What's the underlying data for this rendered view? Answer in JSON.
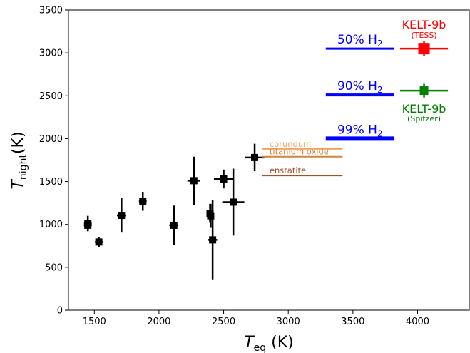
{
  "chart_data": {
    "type": "scatter",
    "title": "",
    "xlabel": {
      "main": "T",
      "sub": "eq",
      "unit": " (K)"
    },
    "ylabel": {
      "main": "T",
      "sub": "night",
      "unit": "(K)"
    },
    "xlim": [
      1300,
      4400
    ],
    "ylim": [
      0,
      3500
    ],
    "x_ticks": [
      1500,
      2000,
      2500,
      3000,
      3500,
      4000
    ],
    "y_ticks": [
      0,
      500,
      1000,
      1500,
      2000,
      2500,
      3000,
      3500
    ],
    "grid": false,
    "points": [
      {
        "x": 1450,
        "y": 1010,
        "xerr": 30,
        "yerr": 90
      },
      {
        "x": 1450,
        "y": 990,
        "xerr": 30,
        "yerr": 60
      },
      {
        "x": 1535,
        "y": 795,
        "xerr": 30,
        "yerr": 60
      },
      {
        "x": 1710,
        "y": 1105,
        "xerr": 35,
        "yerr": 200
      },
      {
        "x": 1875,
        "y": 1270,
        "xerr": 30,
        "yerr": 110
      },
      {
        "x": 2115,
        "y": 990,
        "xerr": 35,
        "yerr": 230
      },
      {
        "x": 2270,
        "y": 1510,
        "xerr": 50,
        "yerr": 280
      },
      {
        "x": 2395,
        "y": 1130,
        "xerr": 25,
        "yerr": 110
      },
      {
        "x": 2400,
        "y": 1100,
        "xerr": 20,
        "yerr": 140
      },
      {
        "x": 2415,
        "y": 820,
        "xerr": 35,
        "yerr": 460
      },
      {
        "x": 2500,
        "y": 1530,
        "xerr": 75,
        "yerr": 110
      },
      {
        "x": 2575,
        "y": 1260,
        "xerr": 85,
        "yerr": 390
      },
      {
        "x": 2740,
        "y": 1780,
        "xerr": 75,
        "yerr": 160
      }
    ],
    "kelt9b": [
      {
        "label": "KELT-9b",
        "sublabel": "(TESS)",
        "color": "#ff0000",
        "x": 4050,
        "y": 3050,
        "xerr": 185,
        "yerr": 90
      },
      {
        "label": "KELT-9b",
        "sublabel": "(Spitzer)",
        "color": "#008000",
        "x": 4050,
        "y": 2560,
        "xerr": 185,
        "yerr": 80
      }
    ],
    "h2_lines": [
      {
        "label": "50% H",
        "sub": "2",
        "y": 3050,
        "x_start": 3290,
        "x_end": 3820,
        "color": "#0000ff",
        "thickness": 3
      },
      {
        "label": "90% H",
        "sub": "2",
        "y": 2510,
        "x_start": 3290,
        "x_end": 3820,
        "color": "#0000ff",
        "thickness": 4
      },
      {
        "label": "99% H",
        "sub": "2",
        "y": 2000,
        "x_start": 3290,
        "x_end": 3820,
        "color": "#0000ff",
        "thickness": 6
      }
    ],
    "condensate_lines": [
      {
        "label": "corundum",
        "y": 1880,
        "x_start": 2800,
        "x_end": 3420,
        "color": "#f4a460"
      },
      {
        "label": "titanium oxide",
        "y": 1790,
        "x_start": 2800,
        "x_end": 3420,
        "color": "#cd853f"
      },
      {
        "label": "enstatite",
        "y": 1570,
        "x_start": 2800,
        "x_end": 3420,
        "color": "#a0522d"
      }
    ]
  }
}
